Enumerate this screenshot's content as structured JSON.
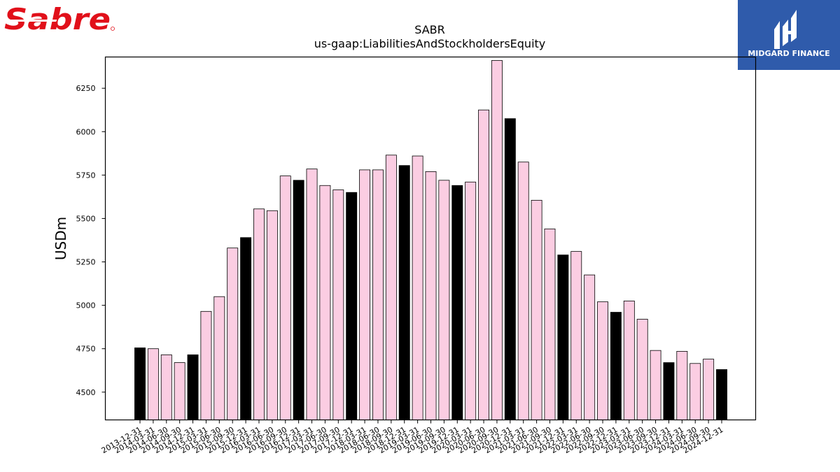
{
  "logos": {
    "left_text": "Sabre",
    "right_text": "MIDGARD FINANCE",
    "right_bg": "#2f5bab",
    "left_color": "#e1101a"
  },
  "colors": {
    "year_end_bar": "#000000",
    "quarter_bar": "#fbcde2",
    "bar_edge": "#000000"
  },
  "chart_data": {
    "type": "bar",
    "title": "SABR",
    "subtitle": "us-gaap:LiabilitiesAndStockholdersEquity",
    "xlabel": "",
    "ylabel": "USDm",
    "ylim": [
      4340,
      6430
    ],
    "yticks": [
      4500,
      4750,
      5000,
      5250,
      5500,
      5750,
      6000,
      6250
    ],
    "grid": false,
    "categories": [
      "2013-12-31",
      "2014-03-31",
      "2014-06-30",
      "2014-09-30",
      "2014-12-31",
      "2015-03-31",
      "2015-06-30",
      "2015-09-30",
      "2015-12-31",
      "2016-03-31",
      "2016-06-30",
      "2016-09-30",
      "2016-12-31",
      "2017-03-31",
      "2017-06-30",
      "2017-09-30",
      "2017-12-31",
      "2018-03-31",
      "2018-06-30",
      "2018-09-30",
      "2018-12-31",
      "2019-03-31",
      "2019-06-30",
      "2019-09-30",
      "2019-12-31",
      "2020-03-31",
      "2020-06-30",
      "2020-09-30",
      "2020-12-31",
      "2021-03-31",
      "2021-06-30",
      "2021-09-30",
      "2021-12-31",
      "2022-03-31",
      "2022-06-30",
      "2022-09-30",
      "2022-12-31",
      "2023-03-31",
      "2023-06-30",
      "2023-09-30",
      "2023-12-31",
      "2024-03-31",
      "2024-06-30",
      "2024-09-30",
      "2024-12-31"
    ],
    "values": [
      4755,
      4750,
      4715,
      4670,
      4715,
      4965,
      5050,
      5330,
      5390,
      5555,
      5545,
      5745,
      5720,
      5785,
      5690,
      5665,
      5650,
      5780,
      5780,
      5865,
      5805,
      5860,
      5770,
      5720,
      5690,
      5710,
      6125,
      6410,
      6075,
      5825,
      5605,
      5440,
      5290,
      5310,
      5175,
      5020,
      4960,
      5025,
      4920,
      4740,
      4670,
      4735,
      4665,
      4690,
      4630
    ]
  }
}
